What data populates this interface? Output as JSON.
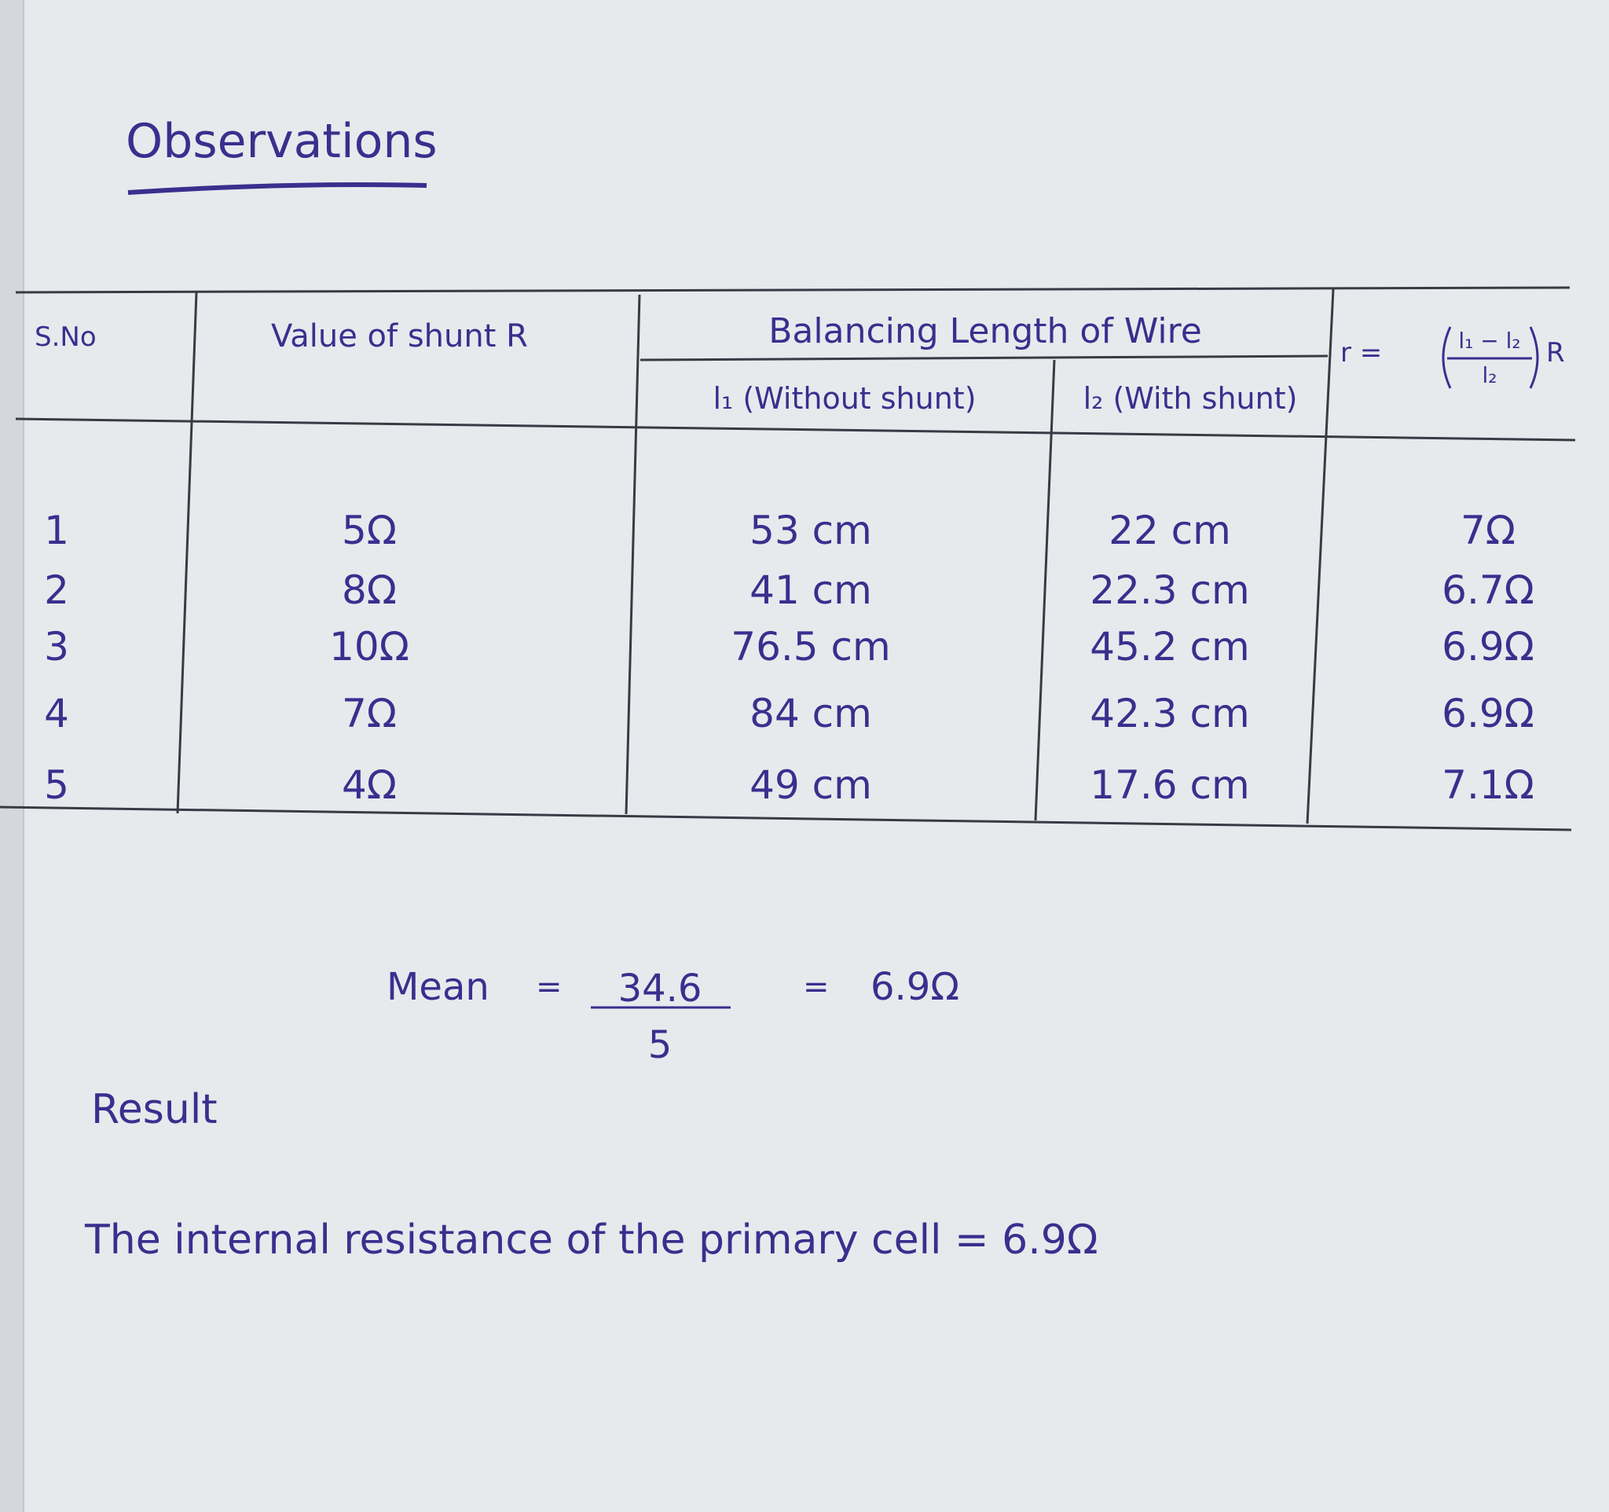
{
  "header": {
    "title": "Observations"
  },
  "table": {
    "columns": {
      "sno": "S.No",
      "shunt": "Value of shunt R",
      "balancing": "Balancing Length of Wire",
      "l1": "l₁ (Without shunt)",
      "l2": "l₂ (With shunt)",
      "formula": {
        "lhs": "r =",
        "numerator": "l₁ − l₂",
        "denominator": "l₂",
        "factor": "R"
      }
    },
    "rows": [
      [
        "1",
        "5Ω",
        "53 cm",
        "22 cm",
        "7Ω"
      ],
      [
        "2",
        "8Ω",
        "41 cm",
        "22.3 cm",
        "6.7Ω"
      ],
      [
        "3",
        "10Ω",
        "76.5 cm",
        "45.2 cm",
        "6.9Ω"
      ],
      [
        "4",
        "7Ω",
        "84 cm",
        "42.3 cm",
        "6.9Ω"
      ],
      [
        "5",
        "4Ω",
        "49 cm",
        "17.6 cm",
        "7.1Ω"
      ]
    ]
  },
  "mean": {
    "label": "Mean",
    "equals": "=",
    "numerator": "34.6",
    "denominator": "5",
    "result": "6.9Ω"
  },
  "result": {
    "heading": "Result",
    "text": "The internal resistance of the primary cell = 6.9Ω"
  }
}
